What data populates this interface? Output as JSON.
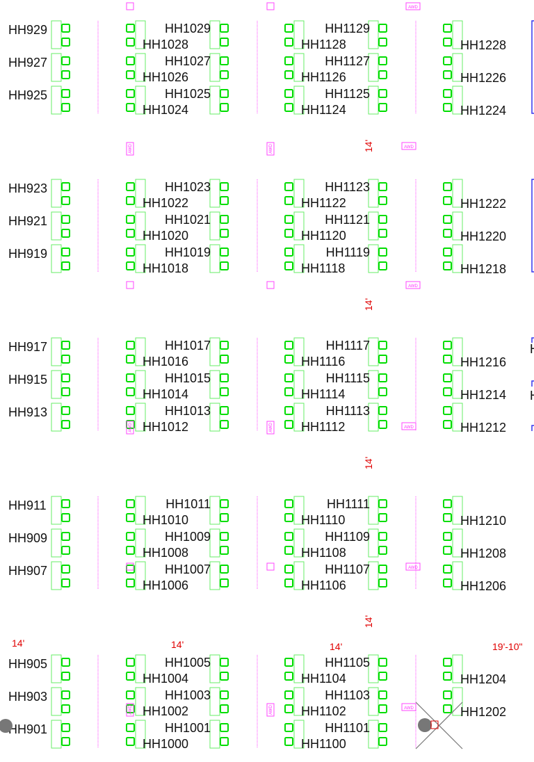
{
  "colors": {
    "booth_outline": "#66ee66",
    "outlet": "#00dd00",
    "aisle_divider": "#ff44ff",
    "dimension": "#e00000",
    "wall": "#3333ee",
    "column": "#777777"
  },
  "blocks": [
    {
      "col900": [
        "HH929",
        "HH927",
        "HH925"
      ],
      "col1000": [
        [
          "HH1029",
          "HH1028"
        ],
        [
          "HH1027",
          "HH1026"
        ],
        [
          "HH1025",
          "HH1024"
        ]
      ],
      "col1100": [
        [
          "HH1129",
          "HH1128"
        ],
        [
          "HH1127",
          "HH1126"
        ],
        [
          "HH1125",
          "HH1124"
        ]
      ],
      "col1200": [
        "HH1228",
        "HH1226",
        "HH1224"
      ]
    },
    {
      "col900": [
        "HH923",
        "HH921",
        "HH919"
      ],
      "col1000": [
        [
          "HH1023",
          "HH1022"
        ],
        [
          "HH1021",
          "HH1020"
        ],
        [
          "HH1019",
          "HH1018"
        ]
      ],
      "col1100": [
        [
          "HH1123",
          "HH1122"
        ],
        [
          "HH1121",
          "HH1120"
        ],
        [
          "HH1119",
          "HH1118"
        ]
      ],
      "col1200": [
        "HH1222",
        "HH1220",
        "HH1218"
      ]
    },
    {
      "col900": [
        "HH917",
        "HH915",
        "HH913"
      ],
      "col1000": [
        [
          "HH1017",
          "HH1016"
        ],
        [
          "HH1015",
          "HH1014"
        ],
        [
          "HH1013",
          "HH1012"
        ]
      ],
      "col1100": [
        [
          "HH1117",
          "HH1116"
        ],
        [
          "HH1115",
          "HH1114"
        ],
        [
          "HH1113",
          "HH1112"
        ]
      ],
      "col1200": [
        "HH1216",
        "HH1214",
        "HH1212"
      ]
    },
    {
      "col900": [
        "HH911",
        "HH909",
        "HH907"
      ],
      "col1000": [
        [
          "HH1011",
          "HH1010"
        ],
        [
          "HH1009",
          "HH1008"
        ],
        [
          "HH1007",
          "HH1006"
        ]
      ],
      "col1100": [
        [
          "HH1111",
          "HH1110"
        ],
        [
          "HH1109",
          "HH1108"
        ],
        [
          "HH1107",
          "HH1106"
        ]
      ],
      "col1200": [
        "HH1210",
        "HH1208",
        "HH1206"
      ]
    },
    {
      "col900": [
        "HH905",
        "HH903",
        "HH901"
      ],
      "col1000": [
        [
          "HH1005",
          "HH1004"
        ],
        [
          "HH1003",
          "HH1002"
        ],
        [
          "HH1001",
          "HH1000"
        ]
      ],
      "col1100": [
        [
          "HH1105",
          "HH1104"
        ],
        [
          "HH1103",
          "HH1102"
        ],
        [
          "HH1101",
          "HH1100"
        ]
      ],
      "col1200": [
        "HH1204",
        "HH1202"
      ]
    }
  ],
  "aisle_dimensions": [
    "14'",
    "14'",
    "14'",
    "14'"
  ],
  "bottom_dimensions": [
    "14'",
    "14'",
    "14'",
    "19'-10\""
  ],
  "edge_labels": [
    "H",
    "H"
  ],
  "marker_text": "AWD"
}
